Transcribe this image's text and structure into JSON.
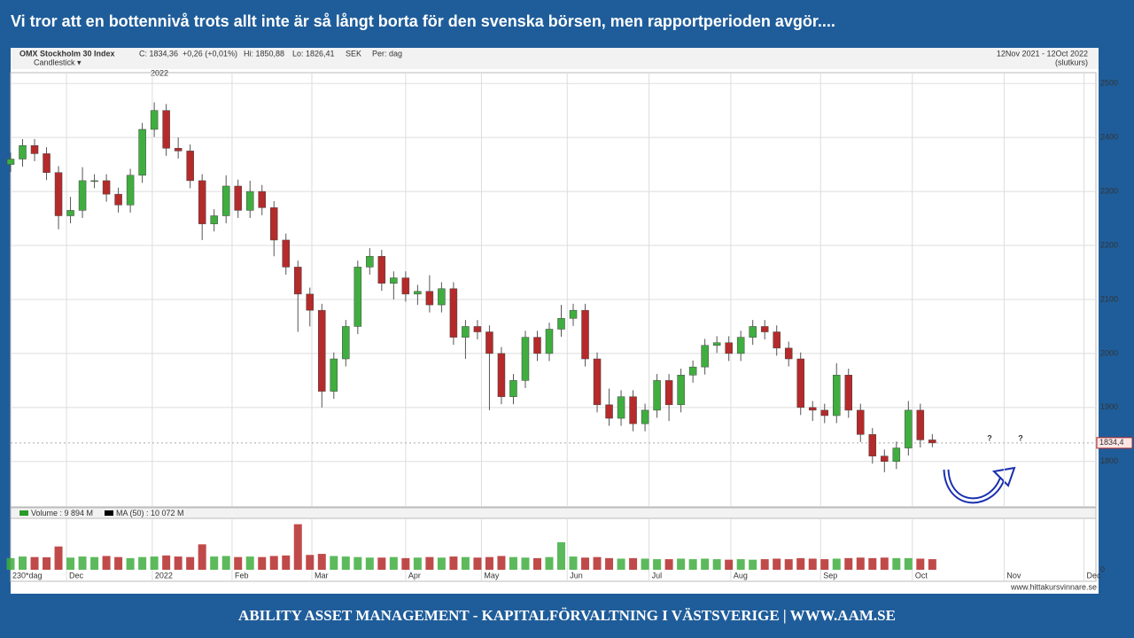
{
  "slide": {
    "title": "Vi tror att en bottennivå trots allt inte är så långt borta för den svenska börsen, men rapportperioden  avgör....",
    "footer": "ABILITY ASSET MANAGEMENT -  KAPITALFÖRVALTNING I VÄSTSVERIGE   |   WWW.AAM.SE"
  },
  "chart_data": {
    "type": "candlestick",
    "title": "OMX Stockholm 30 Index",
    "info": [
      "C: 1834,36",
      "+0,26 (+0,01%)",
      "Hi: 1850,88",
      "Lo: 1826,41",
      "SEK",
      "Per: dag"
    ],
    "subtitle": "Candlestick ▾",
    "period": "12Nov 2021 - 12Oct 2022",
    "period_note": "(slutkurs)",
    "year_marker": "2022",
    "source": "www.hittakursvinnare.se",
    "x_period_label": "230*dag",
    "annotations": [
      "?",
      "?"
    ],
    "up_color": "#3fae3f",
    "down_color": "#b52a2a",
    "grid": true,
    "xlim": [
      0,
      272
    ],
    "xticks": [
      {
        "value": 14,
        "label": "Dec"
      },
      {
        "value": 35.5,
        "label": "2022"
      },
      {
        "value": 55.5,
        "label": "Feb"
      },
      {
        "value": 75.5,
        "label": "Mar"
      },
      {
        "value": 99,
        "label": "Apr"
      },
      {
        "value": 118,
        "label": "May"
      },
      {
        "value": 139.5,
        "label": "Jun"
      },
      {
        "value": 160,
        "label": "Jul"
      },
      {
        "value": 180.5,
        "label": "Aug"
      },
      {
        "value": 203,
        "label": "Sep"
      },
      {
        "value": 226,
        "label": "Oct"
      },
      {
        "value": 249,
        "label": "Nov"
      },
      {
        "value": 269,
        "label": "Dec"
      }
    ],
    "ylim": [
      1716,
      2520
    ],
    "yticks": [
      1800,
      1900,
      2000,
      2100,
      2200,
      2300,
      2400,
      2500
    ],
    "last_price": {
      "value": 1834.4,
      "label": "1834,4"
    },
    "x": [
      0,
      3,
      6,
      9,
      12,
      15,
      18,
      21,
      24,
      27,
      30,
      33,
      36,
      39,
      42,
      45,
      48,
      51,
      54,
      57,
      60,
      63,
      66,
      69,
      72,
      75,
      78,
      81,
      84,
      87,
      90,
      93,
      96,
      99,
      102,
      105,
      108,
      111,
      114,
      117,
      120,
      123,
      126,
      129,
      132,
      135,
      138,
      141,
      144,
      147,
      150,
      153,
      156,
      159,
      162,
      165,
      168,
      171,
      174,
      177,
      180,
      183,
      186,
      189,
      192,
      195,
      198,
      201,
      204,
      207,
      210,
      213,
      216,
      219,
      222,
      225,
      228,
      231
    ],
    "open": [
      2350,
      2360,
      2385,
      2370,
      2335,
      2255,
      2265,
      2320,
      2320,
      2295,
      2275,
      2330,
      2415,
      2450,
      2380,
      2375,
      2320,
      2240,
      2255,
      2310,
      2265,
      2300,
      2270,
      2210,
      2160,
      2110,
      2080,
      1930,
      1990,
      2050,
      2160,
      2180,
      2130,
      2140,
      2110,
      2115,
      2090,
      2120,
      2030,
      2050,
      2040,
      2000,
      1920,
      1950,
      2030,
      2000,
      2045,
      2065,
      2080,
      1990,
      1905,
      1880,
      1920,
      1870,
      1895,
      1950,
      1905,
      1960,
      1975,
      2015,
      2020,
      2000,
      2030,
      2050,
      2040,
      2010,
      1990,
      1900,
      1895,
      1885,
      1960,
      1895,
      1850,
      1810,
      1800,
      1825,
      1895,
      1840
    ],
    "high": [
      2372,
      2397,
      2397,
      2382,
      2347,
      2290,
      2345,
      2332,
      2332,
      2307,
      2342,
      2427,
      2465,
      2462,
      2400,
      2387,
      2332,
      2267,
      2330,
      2322,
      2320,
      2312,
      2282,
      2222,
      2172,
      2122,
      2092,
      2002,
      2062,
      2172,
      2195,
      2192,
      2152,
      2152,
      2127,
      2145,
      2132,
      2132,
      2062,
      2062,
      2052,
      2012,
      1962,
      2042,
      2042,
      2057,
      2090,
      2092,
      2092,
      2002,
      1935,
      1932,
      1932,
      1907,
      1962,
      1962,
      1972,
      1987,
      2027,
      2032,
      2032,
      2042,
      2062,
      2062,
      2052,
      2022,
      2002,
      1912,
      1907,
      1982,
      1972,
      1907,
      1862,
      1822,
      1837,
      1912,
      1907,
      1850.88
    ],
    "low": [
      2336,
      2346,
      2356,
      2321,
      2230,
      2241,
      2251,
      2306,
      2281,
      2261,
      2261,
      2316,
      2401,
      2366,
      2361,
      2306,
      2210,
      2226,
      2241,
      2251,
      2251,
      2256,
      2180,
      2146,
      2040,
      2050,
      1900,
      1916,
      1976,
      2036,
      2146,
      2116,
      2100,
      2096,
      2090,
      2076,
      2076,
      2016,
      1990,
      2026,
      1895,
      1906,
      1906,
      1936,
      1986,
      1986,
      2031,
      2051,
      1976,
      1891,
      1866,
      1866,
      1856,
      1856,
      1881,
      1875,
      1891,
      1946,
      1961,
      2001,
      1986,
      1986,
      2016,
      2026,
      1996,
      1976,
      1886,
      1875,
      1871,
      1871,
      1881,
      1836,
      1796,
      1780,
      1786,
      1811,
      1826,
      1826.41
    ],
    "close": [
      2360,
      2385,
      2370,
      2335,
      2255,
      2265,
      2320,
      2320,
      2295,
      2275,
      2330,
      2415,
      2450,
      2380,
      2375,
      2320,
      2240,
      2255,
      2310,
      2265,
      2300,
      2270,
      2210,
      2160,
      2110,
      2080,
      1930,
      1990,
      2050,
      2160,
      2180,
      2130,
      2140,
      2110,
      2115,
      2090,
      2120,
      2030,
      2050,
      2040,
      2000,
      1920,
      1950,
      2030,
      2000,
      2045,
      2065,
      2080,
      1990,
      1905,
      1880,
      1920,
      1870,
      1895,
      1950,
      1905,
      1960,
      1975,
      2015,
      2020,
      2000,
      2030,
      2050,
      2040,
      2010,
      1990,
      1900,
      1895,
      1885,
      1960,
      1895,
      1850,
      1810,
      1800,
      1825,
      1895,
      1840,
      1834.36
    ],
    "volume": {
      "legend": [
        "Volume : 9 894 M",
        "MA (50) : 10 072 M"
      ],
      "ylim": [
        0,
        46000
      ],
      "yticks": [
        0
      ],
      "values": [
        11000,
        12500,
        12000,
        11800,
        22000,
        11500,
        12500,
        12000,
        13000,
        12000,
        11000,
        12000,
        12500,
        13500,
        12500,
        12000,
        24000,
        12500,
        13000,
        12000,
        12500,
        12000,
        13000,
        13500,
        43000,
        14000,
        15000,
        13000,
        12500,
        12000,
        11500,
        11500,
        12000,
        11000,
        11500,
        12000,
        11500,
        12500,
        12000,
        11500,
        12000,
        13000,
        12000,
        11500,
        11000,
        12000,
        26000,
        12500,
        11500,
        12000,
        11000,
        10500,
        11000,
        10500,
        10000,
        10000,
        10500,
        10000,
        10500,
        10000,
        9500,
        10000,
        9500,
        10000,
        10500,
        10000,
        11000,
        10500,
        10000,
        10500,
        11000,
        11500,
        11000,
        11500,
        11000,
        11000,
        10500,
        10000
      ]
    }
  }
}
